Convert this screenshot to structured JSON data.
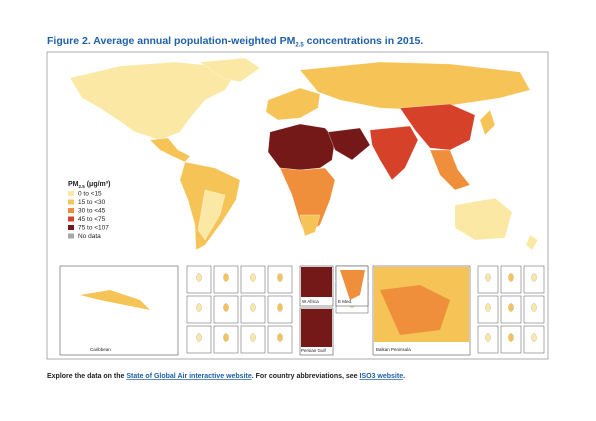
{
  "header": {
    "title": {
      "before": "Figure 2. Average annual population-weighted PM",
      "sub": "2.5",
      "after": " concentrations in 2015."
    }
  },
  "legend": {
    "title": {
      "before": "PM",
      "sub": "2.5",
      "after": " (μg/m³)"
    },
    "items": [
      {
        "label": "0  to <15",
        "color": "#fbe8a4"
      },
      {
        "label": "15  to <30",
        "color": "#f6c456"
      },
      {
        "label": "30  to <45",
        "color": "#ef8f3b"
      },
      {
        "label": "45  to <75",
        "color": "#d6412a"
      },
      {
        "label": "75  to <107",
        "color": "#741818"
      },
      {
        "label": "No data",
        "color": "#a8a8a8"
      }
    ]
  },
  "insets": {
    "caribbean": "Caribbean",
    "w_africa": "W Africa",
    "e_med": "E Med.",
    "persian_gulf": "Persian Gulf",
    "balkan": "Balkan Peninsula"
  },
  "footer": {
    "before": "Explore the data on the ",
    "link1": "State of Global Air interactive website",
    "middle": ". For country abbreviations, see ",
    "link2": "ISO3 website",
    "after": "."
  }
}
